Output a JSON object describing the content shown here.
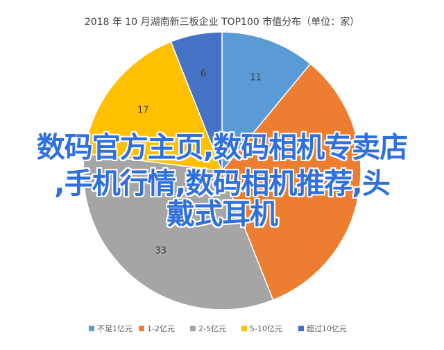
{
  "chart_data": {
    "type": "pie",
    "title": "2018 年 10 月湖南新三板企业 TOP100 市值分布（单位：家）",
    "categories": [
      "不足1亿元",
      "1-2亿元",
      "2-5亿元",
      "5-10亿元",
      "超过10亿元"
    ],
    "values": [
      11,
      33,
      33,
      17,
      6
    ],
    "colors": [
      "#5b9bd5",
      "#ed7d31",
      "#a5a5a5",
      "#ffc000",
      "#4472c4"
    ],
    "legend_position": "bottom"
  },
  "overlay": {
    "lines": [
      "数码官方主页,数码相机专卖店",
      ",手机行情,数码相机推荐,头",
      "戴式耳机"
    ],
    "color": "#2f6fde"
  }
}
